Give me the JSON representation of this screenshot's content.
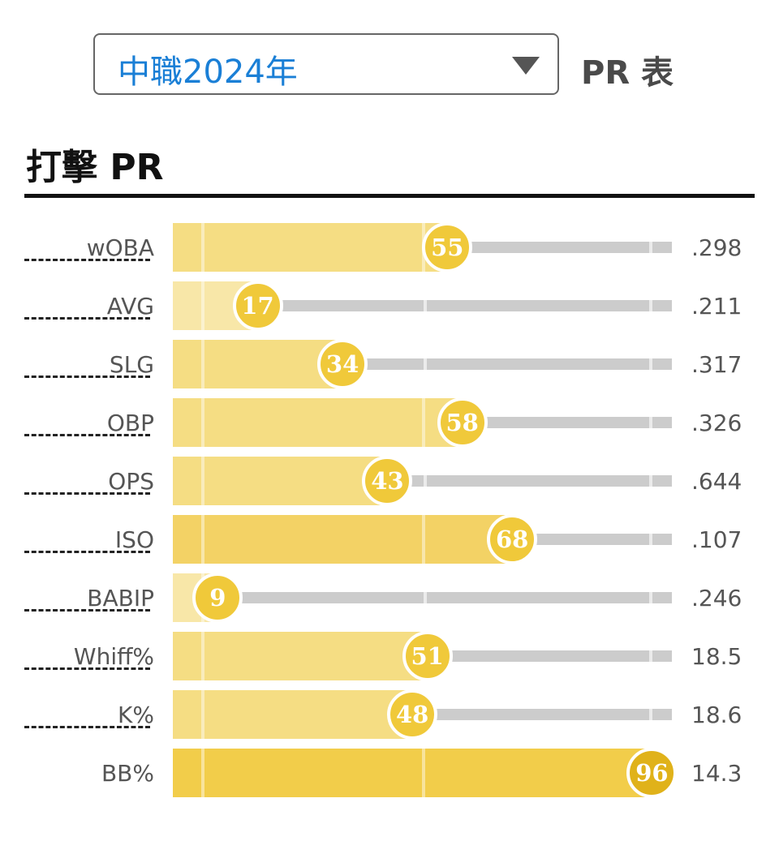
{
  "header": {
    "select_value": "中職2024年",
    "pr_label": "PR 表"
  },
  "section": {
    "title": "打擊 PR"
  },
  "colors": {
    "fill_low": "#f8e7a8",
    "fill_mid": "#f5dd83",
    "fill_high": "#f3d265",
    "fill_top": "#f2cd4a",
    "badge": "#f0c93a",
    "badge_top": "#e0b21a",
    "track": "#cccccc"
  },
  "chart_data": {
    "type": "bar",
    "title": "打擊 PR",
    "xlim": [
      0,
      100
    ],
    "categories": [
      "wOBA",
      "AVG",
      "SLG",
      "OBP",
      "OPS",
      "ISO",
      "BABIP",
      "Whiff%",
      "K%",
      "BB%"
    ],
    "series": [
      {
        "values": [
          55,
          17,
          34,
          58,
          43,
          68,
          9,
          51,
          48,
          96
        ]
      }
    ],
    "stat_values": [
      ".298",
      ".211",
      ".317",
      ".326",
      ".644",
      ".107",
      ".246",
      "18.5",
      "18.6",
      "14.3"
    ]
  }
}
